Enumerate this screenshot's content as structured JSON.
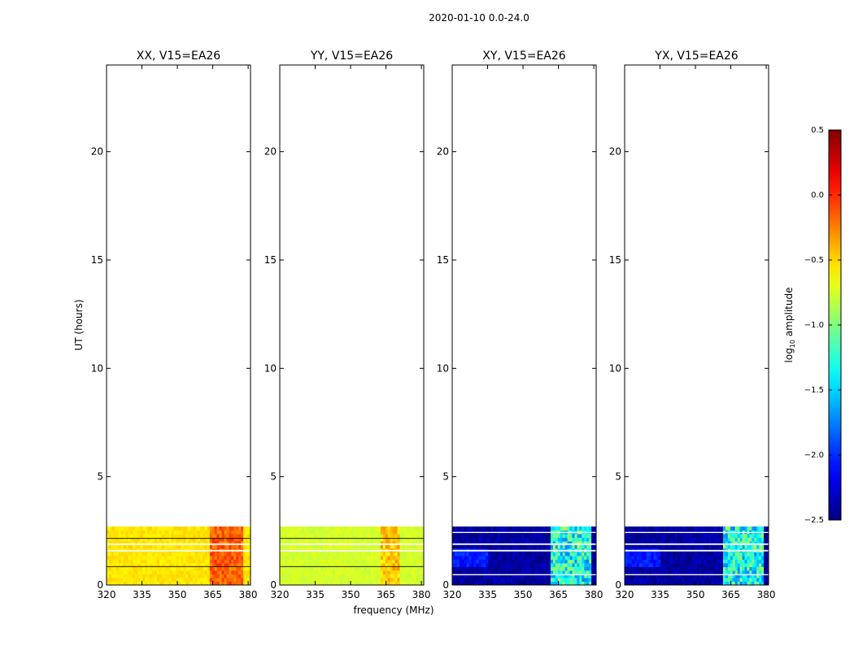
{
  "chart_data": {
    "type": "heatmap",
    "suptitle": "2020-01-10 0.0-24.0",
    "xlabel": "frequency (MHz)",
    "ylabel": "UT (hours)",
    "xlim": [
      320,
      381
    ],
    "ylim": [
      0,
      24
    ],
    "xticks": [
      320,
      335,
      350,
      365,
      380
    ],
    "yticks": [
      0,
      5,
      10,
      15,
      20
    ],
    "data_extent_hours": [
      0,
      2.7
    ],
    "panels": [
      {
        "title": "XX, V15=EA26",
        "pol": "XX",
        "base_log_amp": -0.55,
        "rfi_log_amp": -0.15,
        "rfi_freq": [
          364,
          378
        ]
      },
      {
        "title": "YY, V15=EA26",
        "pol": "YY",
        "base_log_amp": -0.75,
        "rfi_log_amp": -0.45,
        "rfi_freq": [
          363,
          371
        ]
      },
      {
        "title": "XY, V15=EA26",
        "pol": "XY",
        "base_log_amp": -2.4,
        "rfi_log_amp": -1.3,
        "rfi_freq": [
          362,
          379
        ]
      },
      {
        "title": "YX, V15=EA26",
        "pol": "YX",
        "base_log_amp": -2.4,
        "rfi_log_amp": -1.3,
        "rfi_freq": [
          362,
          379
        ]
      }
    ],
    "colorbar": {
      "label": "log",
      "label_sub": "10",
      "label_rest": " amplitude",
      "min": -2.5,
      "max": 0.5,
      "colormap": "jet",
      "ticks": [
        "0.5",
        "0.0",
        "−0.5",
        "−1.0",
        "−1.5",
        "−2.0",
        "−2.5"
      ],
      "tick_values": [
        0.5,
        0.0,
        -0.5,
        -1.0,
        -1.5,
        -2.0,
        -2.5
      ]
    }
  }
}
